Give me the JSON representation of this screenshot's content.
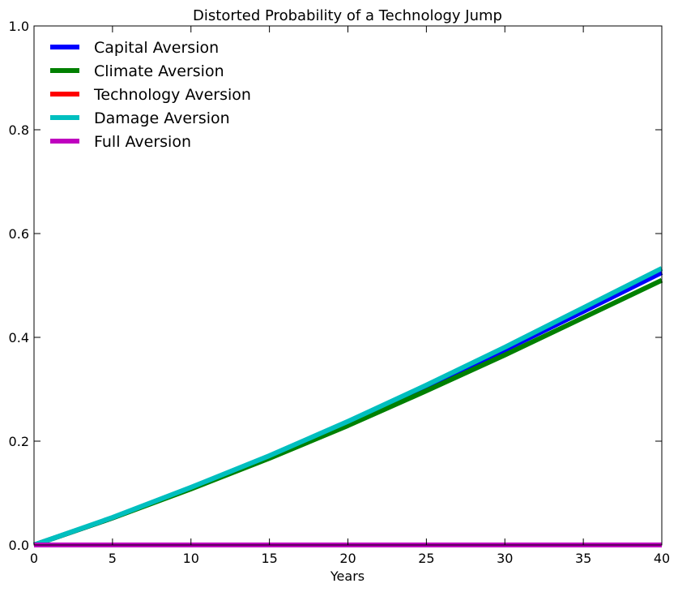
{
  "chart_data": {
    "type": "line",
    "title": "Distorted Probability of a Technology Jump",
    "xlabel": "Years",
    "ylabel": "",
    "xlim": [
      0,
      40
    ],
    "ylim": [
      0,
      1.0
    ],
    "x_ticks": [
      0,
      5,
      10,
      15,
      20,
      25,
      30,
      35,
      40
    ],
    "y_ticks": [
      0.0,
      0.2,
      0.4,
      0.6,
      0.8,
      1.0
    ],
    "x_tick_labels": [
      "0",
      "5",
      "10",
      "15",
      "20",
      "25",
      "30",
      "35",
      "40"
    ],
    "y_tick_labels": [
      "0.0",
      "0.2",
      "0.4",
      "0.6",
      "0.8",
      "1.0"
    ],
    "grid": false,
    "legend_position": "top-left",
    "x": [
      0,
      5,
      10,
      15,
      20,
      25,
      30,
      35,
      40
    ],
    "series": [
      {
        "name": "Capital Aversion",
        "color": "#0000ff",
        "values": [
          0.0,
          0.052,
          0.11,
          0.17,
          0.236,
          0.305,
          0.376,
          0.45,
          0.525
        ]
      },
      {
        "name": "Climate Aversion",
        "color": "#008000",
        "values": [
          0.0,
          0.052,
          0.108,
          0.167,
          0.23,
          0.297,
          0.366,
          0.438,
          0.51
        ]
      },
      {
        "name": "Technology Aversion",
        "color": "#ff0000",
        "values": [
          0.0,
          0.0,
          0.0,
          0.0,
          0.0,
          0.0,
          0.0,
          0.0,
          0.0
        ]
      },
      {
        "name": "Damage Aversion",
        "color": "#00bfbf",
        "values": [
          0.0,
          0.053,
          0.111,
          0.172,
          0.238,
          0.308,
          0.381,
          0.457,
          0.533
        ]
      },
      {
        "name": "Full Aversion",
        "color": "#bf00bf",
        "values": [
          0.0,
          0.0,
          0.0,
          0.0,
          0.0,
          0.0,
          0.0,
          0.0,
          0.0
        ]
      }
    ]
  }
}
